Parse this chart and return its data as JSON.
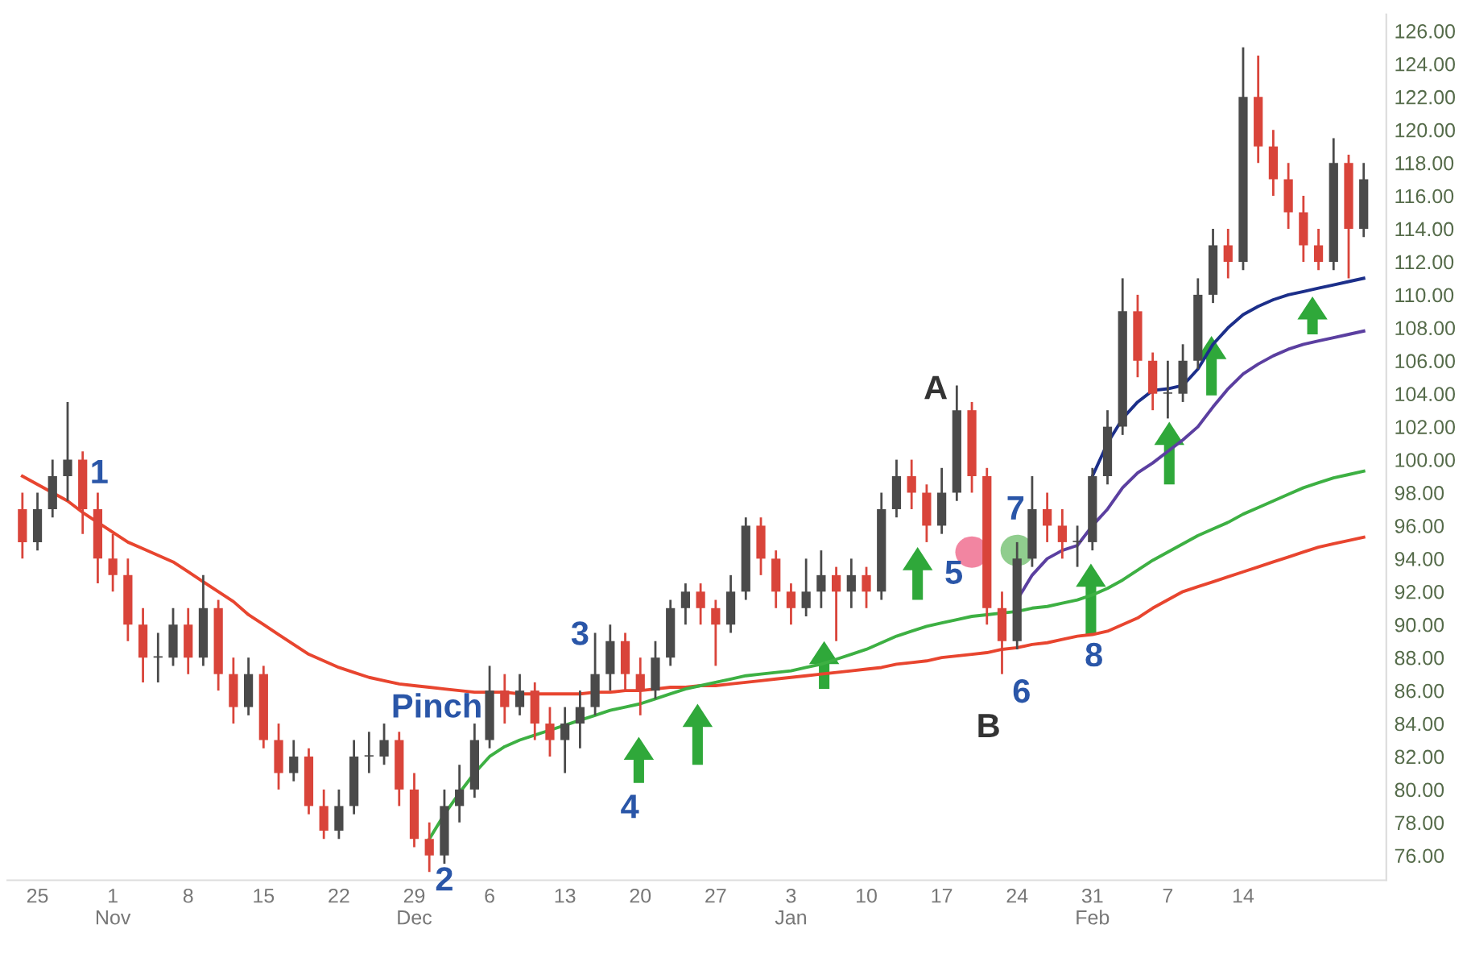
{
  "chart_data": {
    "type": "candlestick",
    "categories": [
      null,
      "25",
      null,
      null,
      null,
      null,
      "1\nNov",
      null,
      null,
      null,
      null,
      "8",
      null,
      null,
      null,
      null,
      "15",
      null,
      null,
      null,
      null,
      "22",
      null,
      null,
      null,
      null,
      "29\nDec",
      null,
      null,
      null,
      null,
      "6",
      null,
      null,
      null,
      null,
      "13",
      null,
      null,
      null,
      null,
      "20",
      null,
      null,
      null,
      null,
      "27",
      null,
      null,
      null,
      null,
      "3\nJan",
      null,
      null,
      null,
      null,
      "10",
      null,
      null,
      null,
      null,
      "17",
      null,
      null,
      null,
      null,
      "24",
      null,
      null,
      null,
      null,
      "31\nFeb",
      null,
      null,
      null,
      null,
      "7",
      null,
      null,
      null,
      null,
      "14",
      null,
      null,
      null,
      null,
      null,
      null,
      null,
      null
    ],
    "ohlc": [
      [
        97,
        98,
        94,
        95
      ],
      [
        95,
        98,
        94.5,
        97
      ],
      [
        97,
        100,
        96.5,
        99
      ],
      [
        99,
        103.5,
        97.5,
        100
      ],
      [
        100,
        100.5,
        95.5,
        97
      ],
      [
        97,
        98,
        92.5,
        94
      ],
      [
        94,
        95.5,
        92,
        93
      ],
      [
        93,
        94,
        89,
        90
      ],
      [
        90,
        91,
        86.5,
        88
      ],
      [
        88,
        89.5,
        86.5,
        88
      ],
      [
        88,
        91,
        87.5,
        90
      ],
      [
        90,
        91,
        87,
        88
      ],
      [
        88,
        93,
        87.5,
        91
      ],
      [
        91,
        91.5,
        86,
        87
      ],
      [
        87,
        88,
        84,
        85
      ],
      [
        85,
        88,
        84.5,
        87
      ],
      [
        87,
        87.5,
        82.5,
        83
      ],
      [
        83,
        84,
        80,
        81
      ],
      [
        81,
        83,
        80.5,
        82
      ],
      [
        82,
        82.5,
        78.5,
        79
      ],
      [
        79,
        80,
        77,
        77.5
      ],
      [
        77.5,
        80,
        77,
        79
      ],
      [
        79,
        83,
        78.5,
        82
      ],
      [
        82,
        83.5,
        81,
        82
      ],
      [
        82,
        84,
        81.5,
        83
      ],
      [
        83,
        83.5,
        79,
        80
      ],
      [
        80,
        81,
        76.5,
        77
      ],
      [
        77,
        78,
        75,
        76
      ],
      [
        76,
        80,
        75.5,
        79
      ],
      [
        79,
        81.5,
        78,
        80
      ],
      [
        80,
        84,
        79.5,
        83
      ],
      [
        83,
        87.5,
        82.5,
        86
      ],
      [
        86,
        87,
        84,
        85
      ],
      [
        85,
        87,
        84.5,
        86
      ],
      [
        86,
        86.5,
        83,
        84
      ],
      [
        84,
        85,
        82,
        83
      ],
      [
        83,
        85,
        81,
        84
      ],
      [
        84,
        86,
        82.5,
        85
      ],
      [
        85,
        89.5,
        84.5,
        87
      ],
      [
        87,
        90,
        86,
        89
      ],
      [
        89,
        89.5,
        86,
        87
      ],
      [
        87,
        88,
        84.5,
        86
      ],
      [
        86,
        89,
        85.5,
        88
      ],
      [
        88,
        91.5,
        87.5,
        91
      ],
      [
        91,
        92.5,
        90,
        92
      ],
      [
        92,
        92.5,
        90,
        91
      ],
      [
        91,
        91.5,
        87.5,
        90
      ],
      [
        90,
        93,
        89.5,
        92
      ],
      [
        92,
        96.5,
        91.5,
        96
      ],
      [
        96,
        96.5,
        93,
        94
      ],
      [
        94,
        94.5,
        91,
        92
      ],
      [
        92,
        92.5,
        90,
        91
      ],
      [
        91,
        94,
        90.5,
        92
      ],
      [
        92,
        94.5,
        91,
        93
      ],
      [
        93,
        93.5,
        89,
        92
      ],
      [
        92,
        94,
        91,
        93
      ],
      [
        93,
        93.5,
        91,
        92
      ],
      [
        92,
        98,
        91.5,
        97
      ],
      [
        97,
        100,
        96.5,
        99
      ],
      [
        99,
        100,
        97,
        98
      ],
      [
        98,
        98.5,
        95,
        96
      ],
      [
        96,
        99.5,
        95.5,
        98
      ],
      [
        98,
        104.5,
        97.5,
        103
      ],
      [
        103,
        103.5,
        98,
        99
      ],
      [
        99,
        99.5,
        90,
        91
      ],
      [
        91,
        92,
        87,
        89
      ],
      [
        89,
        95,
        88.5,
        94
      ],
      [
        94,
        99,
        93.5,
        97
      ],
      [
        97,
        98,
        95,
        96
      ],
      [
        96,
        97,
        94,
        95
      ],
      [
        95,
        96,
        93.5,
        95
      ],
      [
        95,
        99.5,
        94.5,
        99
      ],
      [
        99,
        103,
        98.5,
        102
      ],
      [
        102,
        111,
        101.5,
        109
      ],
      [
        109,
        110,
        105,
        106
      ],
      [
        106,
        106.5,
        103,
        104
      ],
      [
        104,
        106,
        102.5,
        104
      ],
      [
        104,
        107,
        103.5,
        106
      ],
      [
        106,
        111,
        105.5,
        110
      ],
      [
        110,
        114,
        109.5,
        113
      ],
      [
        113,
        114,
        111,
        112
      ],
      [
        112,
        125,
        111.5,
        122
      ],
      [
        122,
        124.5,
        118,
        119
      ],
      [
        119,
        120,
        116,
        117
      ],
      [
        117,
        118,
        114,
        115
      ],
      [
        115,
        116,
        112,
        113
      ],
      [
        113,
        114,
        111.5,
        112
      ],
      [
        112,
        119.5,
        111.5,
        118
      ],
      [
        118,
        118.5,
        111,
        114
      ],
      [
        114,
        118,
        113.5,
        117
      ]
    ],
    "colors": [
      "#d9443a",
      "#4a4a4a",
      "#4a4a4a",
      "#4a4a4a",
      "#d9443a",
      "#d9443a",
      "#d9443a",
      "#d9443a",
      "#d9443a",
      "#4a4a4a",
      "#4a4a4a",
      "#d9443a",
      "#4a4a4a",
      "#d9443a",
      "#d9443a",
      "#4a4a4a",
      "#d9443a",
      "#d9443a",
      "#4a4a4a",
      "#d9443a",
      "#d9443a",
      "#4a4a4a",
      "#4a4a4a",
      "#4a4a4a",
      "#4a4a4a",
      "#d9443a",
      "#d9443a",
      "#d9443a",
      "#4a4a4a",
      "#4a4a4a",
      "#4a4a4a",
      "#4a4a4a",
      "#d9443a",
      "#4a4a4a",
      "#d9443a",
      "#d9443a",
      "#4a4a4a",
      "#4a4a4a",
      "#4a4a4a",
      "#4a4a4a",
      "#d9443a",
      "#d9443a",
      "#4a4a4a",
      "#4a4a4a",
      "#4a4a4a",
      "#d9443a",
      "#d9443a",
      "#4a4a4a",
      "#4a4a4a",
      "#d9443a",
      "#d9443a",
      "#d9443a",
      "#4a4a4a",
      "#4a4a4a",
      "#d9443a",
      "#4a4a4a",
      "#d9443a",
      "#4a4a4a",
      "#4a4a4a",
      "#d9443a",
      "#d9443a",
      "#4a4a4a",
      "#4a4a4a",
      "#d9443a",
      "#d9443a",
      "#d9443a",
      "#4a4a4a",
      "#4a4a4a",
      "#d9443a",
      "#d9443a",
      "#4a4a4a",
      "#4a4a4a",
      "#4a4a4a",
      "#4a4a4a",
      "#d9443a",
      "#d9443a",
      "#4a4a4a",
      "#4a4a4a",
      "#4a4a4a",
      "#4a4a4a",
      "#d9443a",
      "#4a4a4a",
      "#d9443a",
      "#d9443a",
      "#d9443a",
      "#d9443a",
      "#d9443a",
      "#4a4a4a",
      "#d9443a",
      "#4a4a4a"
    ],
    "series": [
      {
        "type": "line",
        "color": "#e8452f",
        "values": [
          99,
          98.5,
          98,
          97.5,
          96.8,
          96.2,
          95.6,
          95,
          94.6,
          94.2,
          93.8,
          93.2,
          92.6,
          92,
          91.4,
          90.6,
          90,
          89.4,
          88.8,
          88.2,
          87.8,
          87.4,
          87.1,
          86.8,
          86.6,
          86.4,
          86.3,
          86.2,
          86.1,
          86,
          85.9,
          85.9,
          85.9,
          85.8,
          85.8,
          85.8,
          85.8,
          85.8,
          85.9,
          85.9,
          86,
          86,
          86.1,
          86.2,
          86.2,
          86.3,
          86.3,
          86.4,
          86.5,
          86.6,
          86.7,
          86.8,
          86.9,
          87,
          87.1,
          87.2,
          87.3,
          87.4,
          87.6,
          87.7,
          87.8,
          88,
          88.1,
          88.2,
          88.3,
          88.5,
          88.6,
          88.8,
          88.9,
          89.1,
          89.3,
          89.4,
          89.6,
          90,
          90.4,
          91,
          91.5,
          92,
          92.3,
          92.6,
          92.9,
          93.2,
          93.5,
          93.8,
          94.1,
          94.4,
          94.7,
          94.9,
          95.1,
          95.3
        ]
      },
      {
        "type": "line",
        "color": "#3db043",
        "values": [
          null,
          null,
          null,
          null,
          null,
          null,
          null,
          null,
          null,
          null,
          null,
          null,
          null,
          null,
          null,
          null,
          null,
          null,
          null,
          null,
          null,
          null,
          null,
          null,
          null,
          null,
          null,
          77,
          78.5,
          79.8,
          81,
          82,
          82.6,
          83,
          83.3,
          83.6,
          83.9,
          84.2,
          84.5,
          84.8,
          85,
          85.2,
          85.5,
          85.8,
          86.1,
          86.3,
          86.5,
          86.7,
          86.9,
          87,
          87.1,
          87.2,
          87.4,
          87.6,
          87.9,
          88.2,
          88.5,
          88.9,
          89.3,
          89.6,
          89.9,
          90.1,
          90.3,
          90.5,
          90.6,
          90.7,
          90.8,
          91,
          91.1,
          91.3,
          91.5,
          91.8,
          92.2,
          92.7,
          93.3,
          93.9,
          94.4,
          94.9,
          95.4,
          95.8,
          96.2,
          96.7,
          97.1,
          97.5,
          97.9,
          98.3,
          98.6,
          98.9,
          99.1,
          99.3
        ]
      },
      {
        "type": "line",
        "color": "#5b3fa0",
        "values": [
          null,
          null,
          null,
          null,
          null,
          null,
          null,
          null,
          null,
          null,
          null,
          null,
          null,
          null,
          null,
          null,
          null,
          null,
          null,
          null,
          null,
          null,
          null,
          null,
          null,
          null,
          null,
          null,
          null,
          null,
          null,
          null,
          null,
          null,
          null,
          null,
          null,
          null,
          null,
          null,
          null,
          null,
          null,
          null,
          null,
          null,
          null,
          null,
          null,
          null,
          null,
          null,
          null,
          null,
          null,
          null,
          null,
          null,
          null,
          null,
          null,
          null,
          null,
          null,
          null,
          null,
          91.5,
          93,
          94,
          94.5,
          94.8,
          96,
          97,
          98.3,
          99.2,
          99.8,
          100.5,
          101.2,
          102,
          103.2,
          104.3,
          105.2,
          105.8,
          106.3,
          106.7,
          107,
          107.2,
          107.4,
          107.6,
          107.8
        ]
      },
      {
        "type": "line",
        "color": "#1c2f8a",
        "values": [
          null,
          null,
          null,
          null,
          null,
          null,
          null,
          null,
          null,
          null,
          null,
          null,
          null,
          null,
          null,
          null,
          null,
          null,
          null,
          null,
          null,
          null,
          null,
          null,
          null,
          null,
          null,
          null,
          null,
          null,
          null,
          null,
          null,
          null,
          null,
          null,
          null,
          null,
          null,
          null,
          null,
          null,
          null,
          null,
          null,
          null,
          null,
          null,
          null,
          null,
          null,
          null,
          null,
          null,
          null,
          null,
          null,
          null,
          null,
          null,
          null,
          null,
          null,
          null,
          null,
          null,
          null,
          null,
          null,
          null,
          null,
          99,
          101,
          102.5,
          103.5,
          104.2,
          104.3,
          104.5,
          105.5,
          107,
          108,
          108.8,
          109.3,
          109.7,
          110,
          110.2,
          110.4,
          110.6,
          110.8,
          111
        ]
      }
    ],
    "ylim": [
      74.5,
      127
    ],
    "yticks": [
      {
        "value": 76,
        "label": "76.00"
      },
      {
        "value": 78,
        "label": "78.00"
      },
      {
        "value": 80,
        "label": "80.00"
      },
      {
        "value": 82,
        "label": "82.00"
      },
      {
        "value": 84,
        "label": "84.00"
      },
      {
        "value": 86,
        "label": "86.00"
      },
      {
        "value": 88,
        "label": "88.00"
      },
      {
        "value": 90,
        "label": "90.00"
      },
      {
        "value": 92,
        "label": "92.00"
      },
      {
        "value": 94,
        "label": "94.00"
      },
      {
        "value": 96,
        "label": "96.00"
      },
      {
        "value": 98,
        "label": "98.00"
      },
      {
        "value": 100,
        "label": "100.00"
      },
      {
        "value": 102,
        "label": "102.00"
      },
      {
        "value": 104,
        "label": "104.00"
      },
      {
        "value": 106,
        "label": "106.00"
      },
      {
        "value": 108,
        "label": "108.00"
      },
      {
        "value": 110,
        "label": "110.00"
      },
      {
        "value": 112,
        "label": "112.00"
      },
      {
        "value": 114,
        "label": "114.00"
      },
      {
        "value": 116,
        "label": "116.00"
      },
      {
        "value": 118,
        "label": "118.00"
      },
      {
        "value": 120,
        "label": "120.00"
      },
      {
        "value": 122,
        "label": "122.00"
      },
      {
        "value": 124,
        "label": "124.00"
      },
      {
        "value": 126,
        "label": "126.00"
      }
    ],
    "annotations": [
      "1",
      "Pinch",
      "2",
      "3",
      "4",
      "A",
      "5",
      "7",
      "B",
      "6",
      "8"
    ]
  }
}
